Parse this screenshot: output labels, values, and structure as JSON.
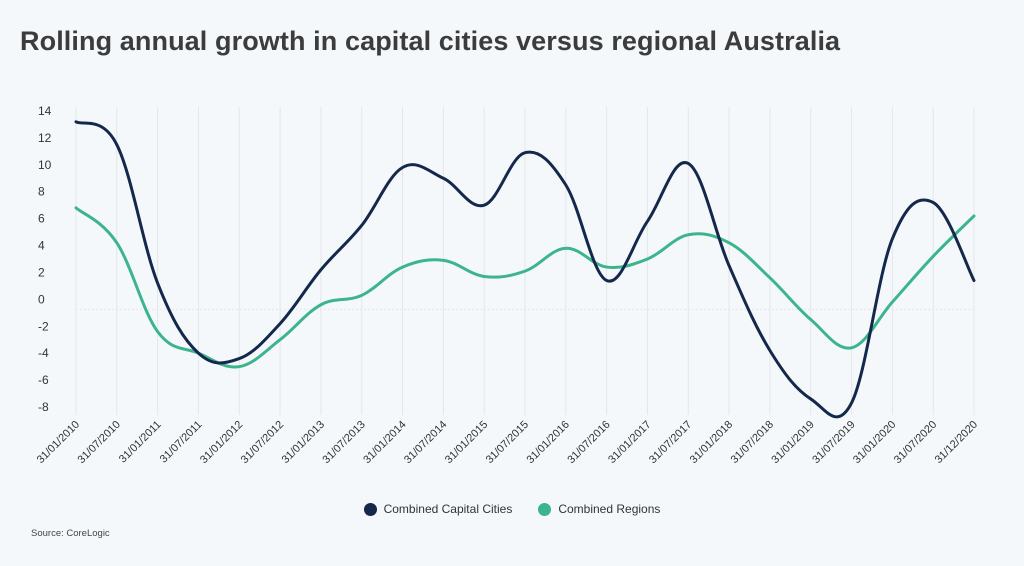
{
  "title": "Rolling annual growth in capital cities versus regional Australia",
  "source": "Source: CoreLogic",
  "legend": {
    "capital": "Combined Capital Cities",
    "regions": "Combined Regions"
  },
  "colors": {
    "capital": "#14284b",
    "regions": "#3cb48c",
    "grid": "#e3e7ea",
    "text": "#333333"
  },
  "chart_data": {
    "type": "line",
    "title": "Rolling annual growth in capital cities versus regional Australia",
    "xlabel": "",
    "ylabel": "",
    "ylim": [
      -8,
      14
    ],
    "yticks": [
      14,
      12,
      10,
      8,
      6,
      4,
      2,
      0,
      -2,
      -4,
      -6,
      -8
    ],
    "grid": "vertical",
    "legend_position": "bottom-center",
    "x": [
      "31/01/2010",
      "31/07/2010",
      "31/01/2011",
      "31/07/2011",
      "31/01/2012",
      "31/07/2012",
      "31/01/2013",
      "31/07/2013",
      "31/01/2014",
      "31/07/2014",
      "31/01/2015",
      "31/07/2015",
      "31/01/2016",
      "31/07/2016",
      "31/01/2017",
      "31/07/2017",
      "31/01/2018",
      "31/07/2018",
      "31/01/2019",
      "31/07/2019",
      "31/01/2020",
      "31/07/2020",
      "31/12/2020"
    ],
    "series": [
      {
        "name": "Combined Capital Cities",
        "values": [
          13.2,
          11.5,
          1.2,
          -4.0,
          -4.4,
          -1.8,
          2.2,
          5.5,
          9.8,
          9.0,
          7.0,
          10.9,
          8.5,
          1.4,
          5.8,
          10.1,
          2.5,
          -3.8,
          -7.4,
          -7.7,
          4.5,
          7.2,
          1.4
        ]
      },
      {
        "name": "Combined Regions",
        "values": [
          6.8,
          4.2,
          -2.4,
          -4.0,
          -5.0,
          -3.0,
          -0.4,
          0.3,
          2.4,
          2.9,
          1.7,
          2.1,
          3.8,
          2.4,
          3.0,
          4.8,
          4.2,
          1.6,
          -1.5,
          -3.6,
          -0.2,
          3.2,
          6.2
        ]
      }
    ]
  }
}
